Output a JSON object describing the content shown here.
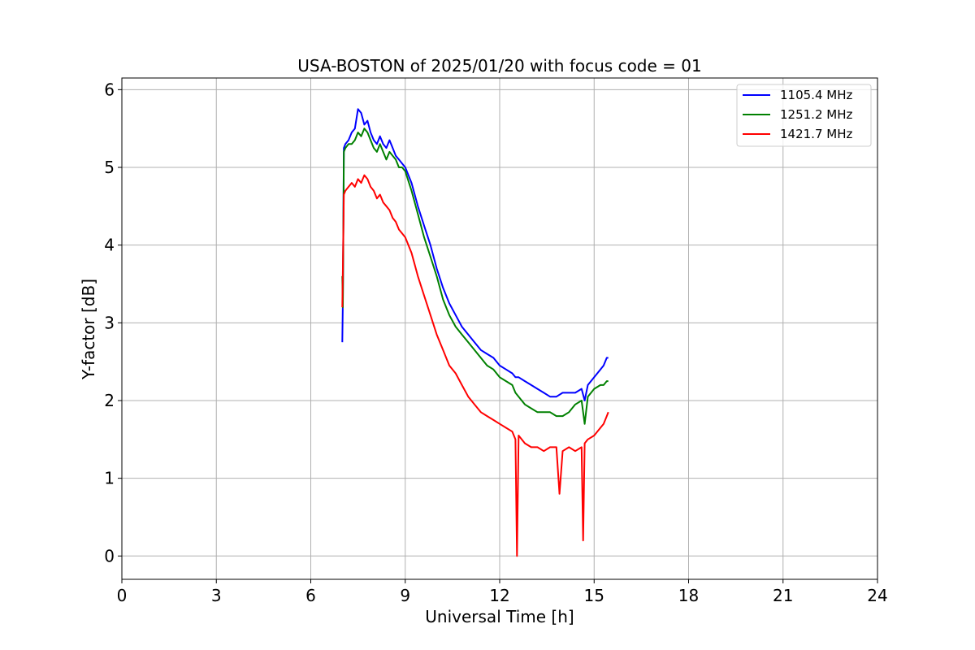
{
  "chart_data": {
    "type": "line",
    "title": "USA-BOSTON of 2025/01/20 with focus code = 01",
    "xlabel": "Universal Time [h]",
    "ylabel": "Y-factor [dB]",
    "xlim": [
      0,
      24
    ],
    "ylim": [
      -0.3,
      6.15
    ],
    "xticks": [
      0,
      3,
      6,
      9,
      12,
      15,
      18,
      21,
      24
    ],
    "xtick_labels": [
      "0",
      "3",
      "6",
      "9",
      "12",
      "15",
      "18",
      "21",
      "24"
    ],
    "yticks": [
      0,
      1,
      2,
      3,
      4,
      5,
      6
    ],
    "ytick_labels": [
      "0",
      "1",
      "2",
      "3",
      "4",
      "5",
      "6"
    ],
    "grid": true,
    "legend_position": "top-right",
    "series": [
      {
        "name": "1105.4 MHz",
        "color": "#0000ff",
        "x": [
          7.0,
          7.02,
          7.05,
          7.1,
          7.2,
          7.3,
          7.4,
          7.5,
          7.6,
          7.7,
          7.8,
          7.9,
          8.0,
          8.1,
          8.2,
          8.3,
          8.4,
          8.5,
          8.6,
          8.7,
          8.8,
          8.9,
          9.0,
          9.2,
          9.4,
          9.6,
          9.8,
          10.0,
          10.2,
          10.4,
          10.6,
          10.8,
          11.0,
          11.2,
          11.4,
          11.6,
          11.8,
          12.0,
          12.2,
          12.4,
          12.5,
          12.6,
          12.8,
          13.0,
          13.2,
          13.4,
          13.6,
          13.8,
          14.0,
          14.2,
          14.4,
          14.6,
          14.7,
          14.8,
          15.0,
          15.2,
          15.3,
          15.4,
          15.45
        ],
        "y": [
          2.75,
          3.3,
          5.25,
          5.3,
          5.35,
          5.45,
          5.5,
          5.75,
          5.7,
          5.55,
          5.6,
          5.45,
          5.35,
          5.3,
          5.4,
          5.3,
          5.25,
          5.35,
          5.25,
          5.15,
          5.1,
          5.05,
          5.0,
          4.8,
          4.5,
          4.25,
          4.0,
          3.7,
          3.45,
          3.25,
          3.1,
          2.95,
          2.85,
          2.75,
          2.65,
          2.6,
          2.55,
          2.45,
          2.4,
          2.35,
          2.3,
          2.3,
          2.25,
          2.2,
          2.15,
          2.1,
          2.05,
          2.05,
          2.1,
          2.1,
          2.1,
          2.15,
          2.0,
          2.2,
          2.3,
          2.4,
          2.45,
          2.55,
          2.55
        ]
      },
      {
        "name": "1251.2 MHz",
        "color": "#008000",
        "x": [
          7.0,
          7.02,
          7.05,
          7.1,
          7.2,
          7.3,
          7.4,
          7.5,
          7.6,
          7.7,
          7.8,
          7.9,
          8.0,
          8.1,
          8.2,
          8.3,
          8.4,
          8.5,
          8.6,
          8.7,
          8.8,
          8.9,
          9.0,
          9.2,
          9.4,
          9.6,
          9.8,
          10.0,
          10.2,
          10.4,
          10.6,
          10.8,
          11.0,
          11.2,
          11.4,
          11.6,
          11.8,
          12.0,
          12.2,
          12.4,
          12.5,
          12.6,
          12.8,
          13.0,
          13.2,
          13.4,
          13.6,
          13.8,
          14.0,
          14.2,
          14.4,
          14.6,
          14.7,
          14.8,
          15.0,
          15.2,
          15.3,
          15.4,
          15.45
        ],
        "y": [
          3.6,
          3.2,
          5.2,
          5.25,
          5.3,
          5.3,
          5.35,
          5.45,
          5.4,
          5.5,
          5.45,
          5.35,
          5.25,
          5.2,
          5.3,
          5.2,
          5.1,
          5.2,
          5.15,
          5.1,
          5.0,
          5.0,
          4.95,
          4.7,
          4.4,
          4.1,
          3.85,
          3.6,
          3.3,
          3.1,
          2.95,
          2.85,
          2.75,
          2.65,
          2.55,
          2.45,
          2.4,
          2.3,
          2.25,
          2.2,
          2.1,
          2.05,
          1.95,
          1.9,
          1.85,
          1.85,
          1.85,
          1.8,
          1.8,
          1.85,
          1.95,
          2.0,
          1.7,
          2.05,
          2.15,
          2.2,
          2.2,
          2.25,
          2.25
        ]
      },
      {
        "name": "1421.7 MHz",
        "color": "#ff0000",
        "x": [
          7.0,
          7.02,
          7.05,
          7.1,
          7.2,
          7.3,
          7.4,
          7.5,
          7.6,
          7.7,
          7.8,
          7.9,
          8.0,
          8.1,
          8.2,
          8.3,
          8.4,
          8.5,
          8.6,
          8.7,
          8.8,
          8.9,
          9.0,
          9.2,
          9.4,
          9.6,
          9.8,
          10.0,
          10.2,
          10.4,
          10.6,
          10.8,
          11.0,
          11.2,
          11.4,
          11.6,
          11.8,
          12.0,
          12.2,
          12.4,
          12.5,
          12.55,
          12.6,
          12.8,
          13.0,
          13.2,
          13.4,
          13.6,
          13.8,
          13.9,
          14.0,
          14.2,
          14.4,
          14.6,
          14.65,
          14.7,
          14.8,
          15.0,
          15.2,
          15.3,
          15.4,
          15.45
        ],
        "y": [
          3.2,
          3.7,
          4.65,
          4.7,
          4.75,
          4.8,
          4.75,
          4.85,
          4.8,
          4.9,
          4.85,
          4.75,
          4.7,
          4.6,
          4.65,
          4.55,
          4.5,
          4.45,
          4.35,
          4.3,
          4.2,
          4.15,
          4.1,
          3.9,
          3.6,
          3.35,
          3.1,
          2.85,
          2.65,
          2.45,
          2.35,
          2.2,
          2.05,
          1.95,
          1.85,
          1.8,
          1.75,
          1.7,
          1.65,
          1.6,
          1.5,
          0.0,
          1.55,
          1.45,
          1.4,
          1.4,
          1.35,
          1.4,
          1.4,
          0.8,
          1.35,
          1.4,
          1.35,
          1.4,
          0.2,
          1.45,
          1.5,
          1.55,
          1.65,
          1.7,
          1.8,
          1.85
        ]
      }
    ]
  }
}
